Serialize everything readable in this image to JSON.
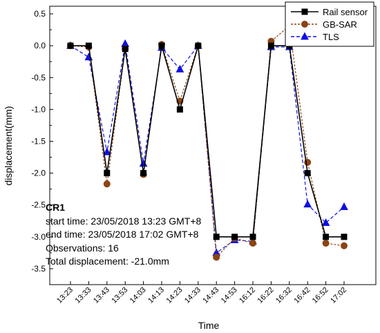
{
  "chart_data": {
    "type": "line",
    "xlabel": "Time",
    "ylabel": "displacement(mm)",
    "categories": [
      "13:23",
      "13:33",
      "13:43",
      "13:53",
      "14:03",
      "14:13",
      "14:23",
      "14:33",
      "14:43",
      "14:53",
      "16:12",
      "16:22",
      "16:32",
      "16:42",
      "16:52",
      "17:02"
    ],
    "ylim": [
      -3.75,
      0.62
    ],
    "yticks": [
      0.5,
      0.0,
      -0.5,
      -1.0,
      -1.5,
      -2.0,
      -2.5,
      -3.0,
      -3.5
    ],
    "ytick_labels": [
      "0.5",
      "0.0",
      "-0.5",
      "-1.0",
      "-1.5",
      "-2.0",
      "-2.5",
      "-3.0",
      "-3.5"
    ],
    "grid": false,
    "legend_position": "top-right",
    "series": [
      {
        "name": "Rail sensor",
        "color": "#000000",
        "marker": "square",
        "line": "solid",
        "values": [
          0,
          0,
          -2.0,
          -0.05,
          -2.0,
          0,
          -1.0,
          0,
          -3.0,
          -3.0,
          -3.0,
          0,
          0,
          -2.0,
          -3.0,
          -3.0
        ]
      },
      {
        "name": "GB-SAR",
        "color": "#8B4513",
        "marker": "circle",
        "line": "dashed",
        "values": [
          0,
          -0.02,
          -2.17,
          -0.05,
          -2.02,
          0.02,
          -0.87,
          0,
          -3.32,
          -3.02,
          -3.1,
          0.07,
          0.31,
          -1.83,
          -3.1,
          -3.14
        ]
      },
      {
        "name": "TLS",
        "color": "#1010e0",
        "marker": "triangle",
        "line": "dashed",
        "values": [
          0,
          -0.18,
          -1.67,
          0.03,
          -1.85,
          -0.03,
          -0.37,
          0,
          -3.25,
          -3.05,
          -3.07,
          -0.02,
          -0.02,
          -2.49,
          -2.78,
          -2.53
        ]
      }
    ]
  },
  "annotation": {
    "title": "CR1",
    "lines": [
      "start time: 23/05/2018  13:23 GMT+8",
      "end time: 23/05/2018  17:02 GMT+8",
      "Observations: 16",
      "Total displacement: -21.0mm"
    ]
  }
}
